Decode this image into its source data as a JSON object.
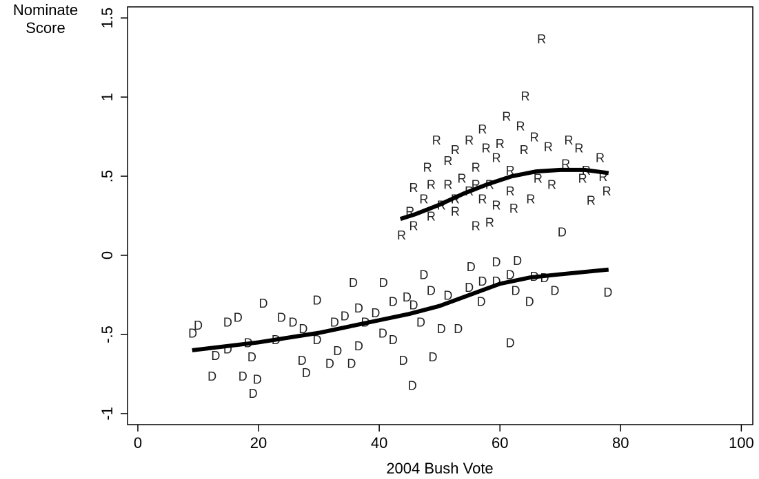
{
  "chart_data": {
    "type": "scatter",
    "xlabel": "2004 Bush Vote",
    "ylabel": [
      "Nominate",
      "Score"
    ],
    "xlim": [
      -1.71,
      101.9
    ],
    "ylim": [
      -1.07,
      1.57
    ],
    "xticks": [
      0,
      20,
      40,
      60,
      80,
      100
    ],
    "yticks": [
      -1,
      {
        "value": -0.5,
        "label": "-.5"
      },
      0,
      {
        "value": 0.5,
        "label": ".5"
      },
      1,
      1.5
    ],
    "series": [
      {
        "name": "D",
        "color": "#222222",
        "x": [
          9.1,
          10,
          12.3,
          12.9,
          14.9,
          16.6,
          17.4,
          19.1,
          19.8,
          20.8,
          18.9,
          23.8,
          25.7,
          27.2,
          27.9,
          29.7,
          31.8,
          33.1,
          35.7,
          35.4,
          40.7,
          37.7,
          40.6,
          44,
          45.5,
          47.4,
          48.9,
          50.3,
          53.1,
          55.2,
          56.9,
          59.4,
          61.7,
          62.9,
          64.9,
          62.6,
          65.7,
          69.1,
          70.3,
          77.9,
          45.7,
          42.3,
          34.3,
          36.6,
          51.4,
          57.1,
          54.9,
          48.6,
          44.6,
          39.4,
          32.6,
          27.4,
          22.9,
          18.3,
          14.9,
          29.7,
          36.6,
          42.3,
          46.9,
          59.4,
          67.4,
          61.7
        ],
        "values": [
          -0.5,
          -0.45,
          -0.77,
          -0.64,
          -0.43,
          -0.4,
          -0.77,
          -0.88,
          -0.79,
          -0.31,
          -0.65,
          -0.4,
          -0.43,
          -0.67,
          -0.75,
          -0.29,
          -0.69,
          -0.61,
          -0.18,
          -0.69,
          -0.18,
          -0.43,
          -0.5,
          -0.67,
          -0.83,
          -0.13,
          -0.65,
          -0.47,
          -0.47,
          -0.08,
          -0.3,
          -0.05,
          -0.56,
          -0.04,
          -0.3,
          -0.23,
          -0.14,
          -0.23,
          0.14,
          -0.24,
          -0.32,
          -0.3,
          -0.39,
          -0.34,
          -0.26,
          -0.17,
          -0.21,
          -0.23,
          -0.27,
          -0.37,
          -0.43,
          -0.47,
          -0.54,
          -0.56,
          -0.6,
          -0.54,
          -0.58,
          -0.54,
          -0.43,
          -0.17,
          -0.15,
          -0.13
        ]
      },
      {
        "name": "R",
        "color": "#222222",
        "x": [
          66.9,
          64.2,
          43.7,
          45.7,
          48,
          49.5,
          52.6,
          56,
          58.3,
          62.3,
          61.1,
          63.4,
          71.4,
          73.1,
          75.1,
          77.7,
          77.1,
          76.6,
          57.1,
          54.9,
          51.4,
          45.7,
          47.4,
          50.3,
          52.6,
          53.7,
          56,
          58.3,
          59.4,
          61.7,
          64,
          66.3,
          68.6,
          70.9,
          73.7,
          54.9,
          57.1,
          59.4,
          48.6,
          52.6,
          61.7,
          65.1,
          56,
          57.7,
          60,
          65.7,
          68,
          51.4,
          45.1,
          48.6,
          74.3
        ],
        "values": [
          1.36,
          1.0,
          0.12,
          0.18,
          0.55,
          0.72,
          0.66,
          0.18,
          0.2,
          0.29,
          0.87,
          0.81,
          0.72,
          0.67,
          0.34,
          0.4,
          0.49,
          0.61,
          0.79,
          0.72,
          0.44,
          0.42,
          0.35,
          0.31,
          0.27,
          0.48,
          0.55,
          0.44,
          0.61,
          0.53,
          0.66,
          0.48,
          0.44,
          0.57,
          0.48,
          0.4,
          0.35,
          0.31,
          0.24,
          0.35,
          0.4,
          0.35,
          0.44,
          0.67,
          0.7,
          0.74,
          0.68,
          0.59,
          0.27,
          0.44,
          0.53
        ]
      }
    ],
    "lines": [
      {
        "x": [
          9,
          20,
          30,
          40,
          45,
          50,
          55,
          60,
          65,
          70,
          78
        ],
        "values": [
          -0.6,
          -0.55,
          -0.49,
          -0.41,
          -0.37,
          -0.32,
          -0.25,
          -0.18,
          -0.14,
          -0.12,
          -0.09
        ],
        "color": "#000000"
      },
      {
        "x": [
          43.5,
          46,
          50,
          54,
          58,
          62,
          66,
          70,
          74,
          78
        ],
        "values": [
          0.23,
          0.26,
          0.32,
          0.39,
          0.45,
          0.5,
          0.53,
          0.54,
          0.54,
          0.52
        ],
        "color": "#000000"
      }
    ]
  }
}
